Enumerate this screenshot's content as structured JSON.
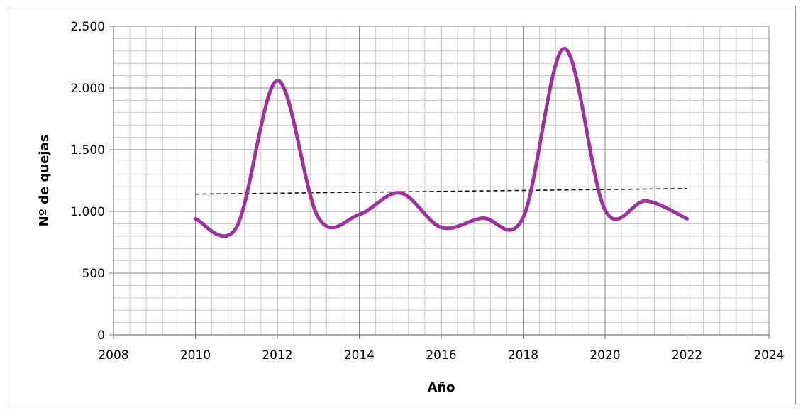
{
  "chart_data": {
    "type": "line",
    "title": "",
    "xlabel": "Año",
    "ylabel": "Nº de quejas",
    "xlim": [
      2008,
      2024
    ],
    "ylim": [
      0,
      2500
    ],
    "x_ticks": [
      2008,
      2010,
      2012,
      2014,
      2016,
      2018,
      2020,
      2022,
      2024
    ],
    "x_tick_labels": [
      "2008",
      "2010",
      "2012",
      "2014",
      "2016",
      "2018",
      "2020",
      "2022",
      "2024"
    ],
    "y_ticks": [
      0,
      500,
      1000,
      1500,
      2000,
      2500
    ],
    "y_tick_labels": [
      "0",
      "500",
      "1.000",
      "1.500",
      "2.000",
      "2.500"
    ],
    "grid": true,
    "minor_grid": true,
    "legend": "none",
    "series": [
      {
        "x": [
          2010,
          2011,
          2012,
          2013,
          2014,
          2015,
          2016,
          2017,
          2018,
          2019,
          2020,
          2021,
          2022
        ],
        "y": [
          940,
          870,
          2060,
          950,
          975,
          1150,
          870,
          945,
          950,
          2320,
          1010,
          1085,
          940
        ],
        "color": "#a0309f",
        "smooth": true
      }
    ],
    "trendline": {
      "x": [
        2010,
        2022
      ],
      "y": [
        1140,
        1185
      ],
      "color": "#000000",
      "style": "dashed"
    }
  }
}
